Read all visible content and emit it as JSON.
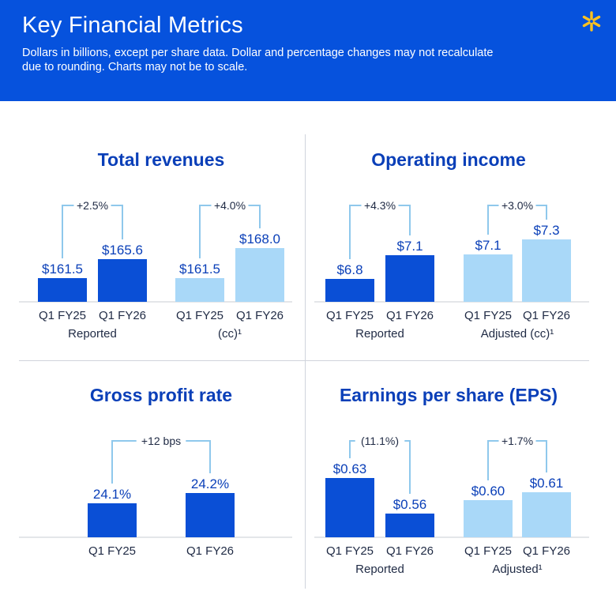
{
  "header": {
    "title": "Key Financial Metrics",
    "subtitle": "Dollars in billions, except per share data. Dollar and percentage changes may not recalculate due to rounding. Charts may not be to scale.",
    "logo_icon": "spark-icon"
  },
  "colors": {
    "header_bg": "#0652dd",
    "dark_bar": "#0a4fd6",
    "light_bar": "#a9d8f8",
    "title_text": "#0a3fb8",
    "bracket": "#8fc8ec"
  },
  "chart_data": [
    {
      "type": "bar",
      "title": "Total revenues",
      "groups": [
        {
          "label": "Reported",
          "change": "+2.5%",
          "style": "dark",
          "categories": [
            "Q1 FY25",
            "Q1 FY26"
          ],
          "values": [
            161.5,
            165.6
          ],
          "value_labels": [
            "$161.5",
            "$165.6"
          ]
        },
        {
          "label": "(cc)¹",
          "change": "+4.0%",
          "style": "light",
          "categories": [
            "Q1 FY25",
            "Q1 FY26"
          ],
          "values": [
            161.5,
            168.0
          ],
          "value_labels": [
            "$161.5",
            "$168.0"
          ]
        }
      ]
    },
    {
      "type": "bar",
      "title": "Operating income",
      "groups": [
        {
          "label": "Reported",
          "change": "+4.3%",
          "style": "dark",
          "categories": [
            "Q1 FY25",
            "Q1 FY26"
          ],
          "values": [
            6.8,
            7.1
          ],
          "value_labels": [
            "$6.8",
            "$7.1"
          ]
        },
        {
          "label": "Adjusted (cc)¹",
          "change": "+3.0%",
          "style": "light",
          "categories": [
            "Q1 FY25",
            "Q1 FY26"
          ],
          "values": [
            7.1,
            7.3
          ],
          "value_labels": [
            "$7.1",
            "$7.3"
          ]
        }
      ]
    },
    {
      "type": "bar",
      "title": "Gross profit rate",
      "groups": [
        {
          "label": "",
          "change": "+12 bps",
          "style": "dark",
          "categories": [
            "Q1 FY25",
            "Q1 FY26"
          ],
          "values": [
            24.1,
            24.2
          ],
          "value_labels": [
            "24.1%",
            "24.2%"
          ]
        }
      ]
    },
    {
      "type": "bar",
      "title": "Earnings per share (EPS)",
      "groups": [
        {
          "label": "Reported",
          "change": "(11.1%)",
          "style": "dark",
          "categories": [
            "Q1 FY25",
            "Q1 FY26"
          ],
          "values": [
            0.63,
            0.56
          ],
          "value_labels": [
            "$0.63",
            "$0.56"
          ]
        },
        {
          "label": "Adjusted¹",
          "change": "+1.7%",
          "style": "light",
          "categories": [
            "Q1 FY25",
            "Q1 FY26"
          ],
          "values": [
            0.6,
            0.61
          ],
          "value_labels": [
            "$0.60",
            "$0.61"
          ]
        }
      ]
    }
  ]
}
